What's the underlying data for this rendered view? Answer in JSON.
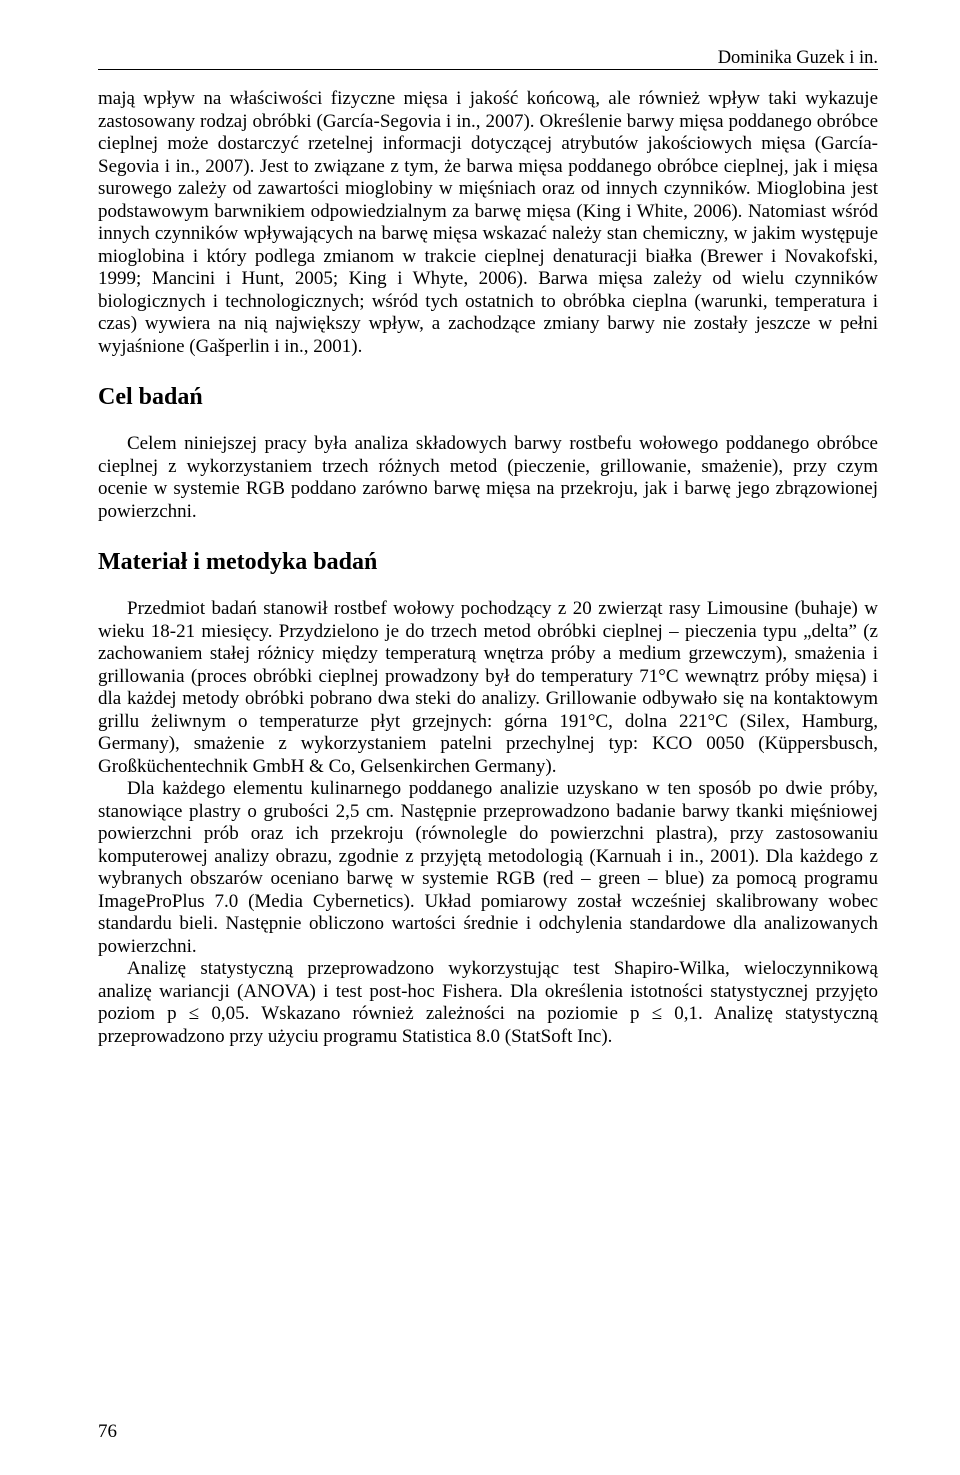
{
  "running_head": "Dominika Guzek i in.",
  "paragraphs": {
    "p1": "mają wpływ na właściwości fizyczne mięsa i jakość końcową, ale również wpływ taki wykazuje zastosowany rodzaj obróbki (García-Segovia i in., 2007). Określenie barwy mięsa poddanego obróbce cieplnej może dostarczyć rzetelnej informacji dotyczącej atrybutów jakościowych mięsa (García-Segovia i in., 2007). Jest to związane z tym, że barwa mięsa poddanego obróbce cieplnej, jak i mięsa surowego zależy od zawartości mioglobiny w mięśniach oraz od innych czynników. Mioglobina jest podstawowym barwnikiem odpowiedzialnym za barwę mięsa (King i White, 2006). Natomiast wśród innych czynników wpływających na barwę mięsa wskazać należy stan chemiczny, w jakim występuje mioglobina i który podlega zmianom w trakcie cieplnej denaturacji białka (Brewer i Novakofski, 1999; Mancini i Hunt, 2005; King i Whyte, 2006). Barwa mięsa zależy od wielu czynników biologicznych i technologicznych; wśród tych ostatnich to obróbka cieplna (warunki, temperatura i czas) wywiera na nią największy wpływ, a zachodzące zmiany barwy nie zostały jeszcze w pełni wyjaśnione (Gašperlin i in., 2001).",
    "p2": "Celem niniejszej pracy była analiza składowych barwy rostbefu wołowego poddanego obróbce cieplnej z wykorzystaniem trzech różnych metod (pieczenie, grillowanie, smażenie), przy czym ocenie w systemie RGB poddano zarówno barwę mięsa na przekroju, jak i barwę jego zbrązowionej powierzchni.",
    "p3": "Przedmiot badań stanowił rostbef wołowy pochodzący z 20 zwierząt rasy Limousine (buhaje) w wieku 18-21 miesięcy. Przydzielono je do trzech metod obróbki cieplnej – pieczenia typu „delta” (z zachowaniem stałej różnicy między temperaturą wnętrza próby a medium grzewczym), smażenia i grillowania (proces obróbki cieplnej prowadzony był do temperatury 71°C wewnątrz próby mięsa) i dla każdej metody obróbki pobrano dwa steki do analizy. Grillowanie odbywało się na kontaktowym grillu żeliwnym o temperaturze płyt grzejnych: górna 191°C, dolna 221°C (Silex, Hamburg, Germany), smażenie z wykorzystaniem patelni przechylnej typ: KCO 0050 (Küppersbusch, Großküchentechnik GmbH & Co, Gelsenkirchen Germany).",
    "p4": "Dla każdego elementu kulinarnego poddanego analizie uzyskano w ten sposób po dwie próby, stanowiące plastry o grubości 2,5 cm. Następnie przeprowadzono badanie barwy tkanki mięśniowej powierzchni prób oraz ich przekroju (równolegle do powierzchni plastra), przy zastosowaniu komputerowej analizy obrazu, zgodnie z przyjętą metodologią (Karnuah i in., 2001). Dla każdego z wybranych obszarów oceniano barwę w systemie RGB (red – green – blue) za pomocą programu ImageProPlus 7.0 (Media Cybernetics). Układ pomiarowy został wcześniej skalibrowany wobec standardu bieli. Następnie obliczono wartości średnie i odchylenia standardowe dla analizowanych powierzchni.",
    "p5": "Analizę statystyczną przeprowadzono wykorzystując test Shapiro-Wilka, wieloczynnikową analizę wariancji (ANOVA) i test post-hoc Fishera. Dla określenia istotności statystycznej przyjęto poziom p ≤ 0,05. Wskazano również zależności na poziomie p ≤ 0,1. Analizę statystyczną przeprowadzono przy użyciu programu Statistica 8.0 (StatSoft Inc)."
  },
  "headings": {
    "h_cel": "Cel badań",
    "h_mat": "Materiał i metodyka badań"
  },
  "page_number": "76"
}
